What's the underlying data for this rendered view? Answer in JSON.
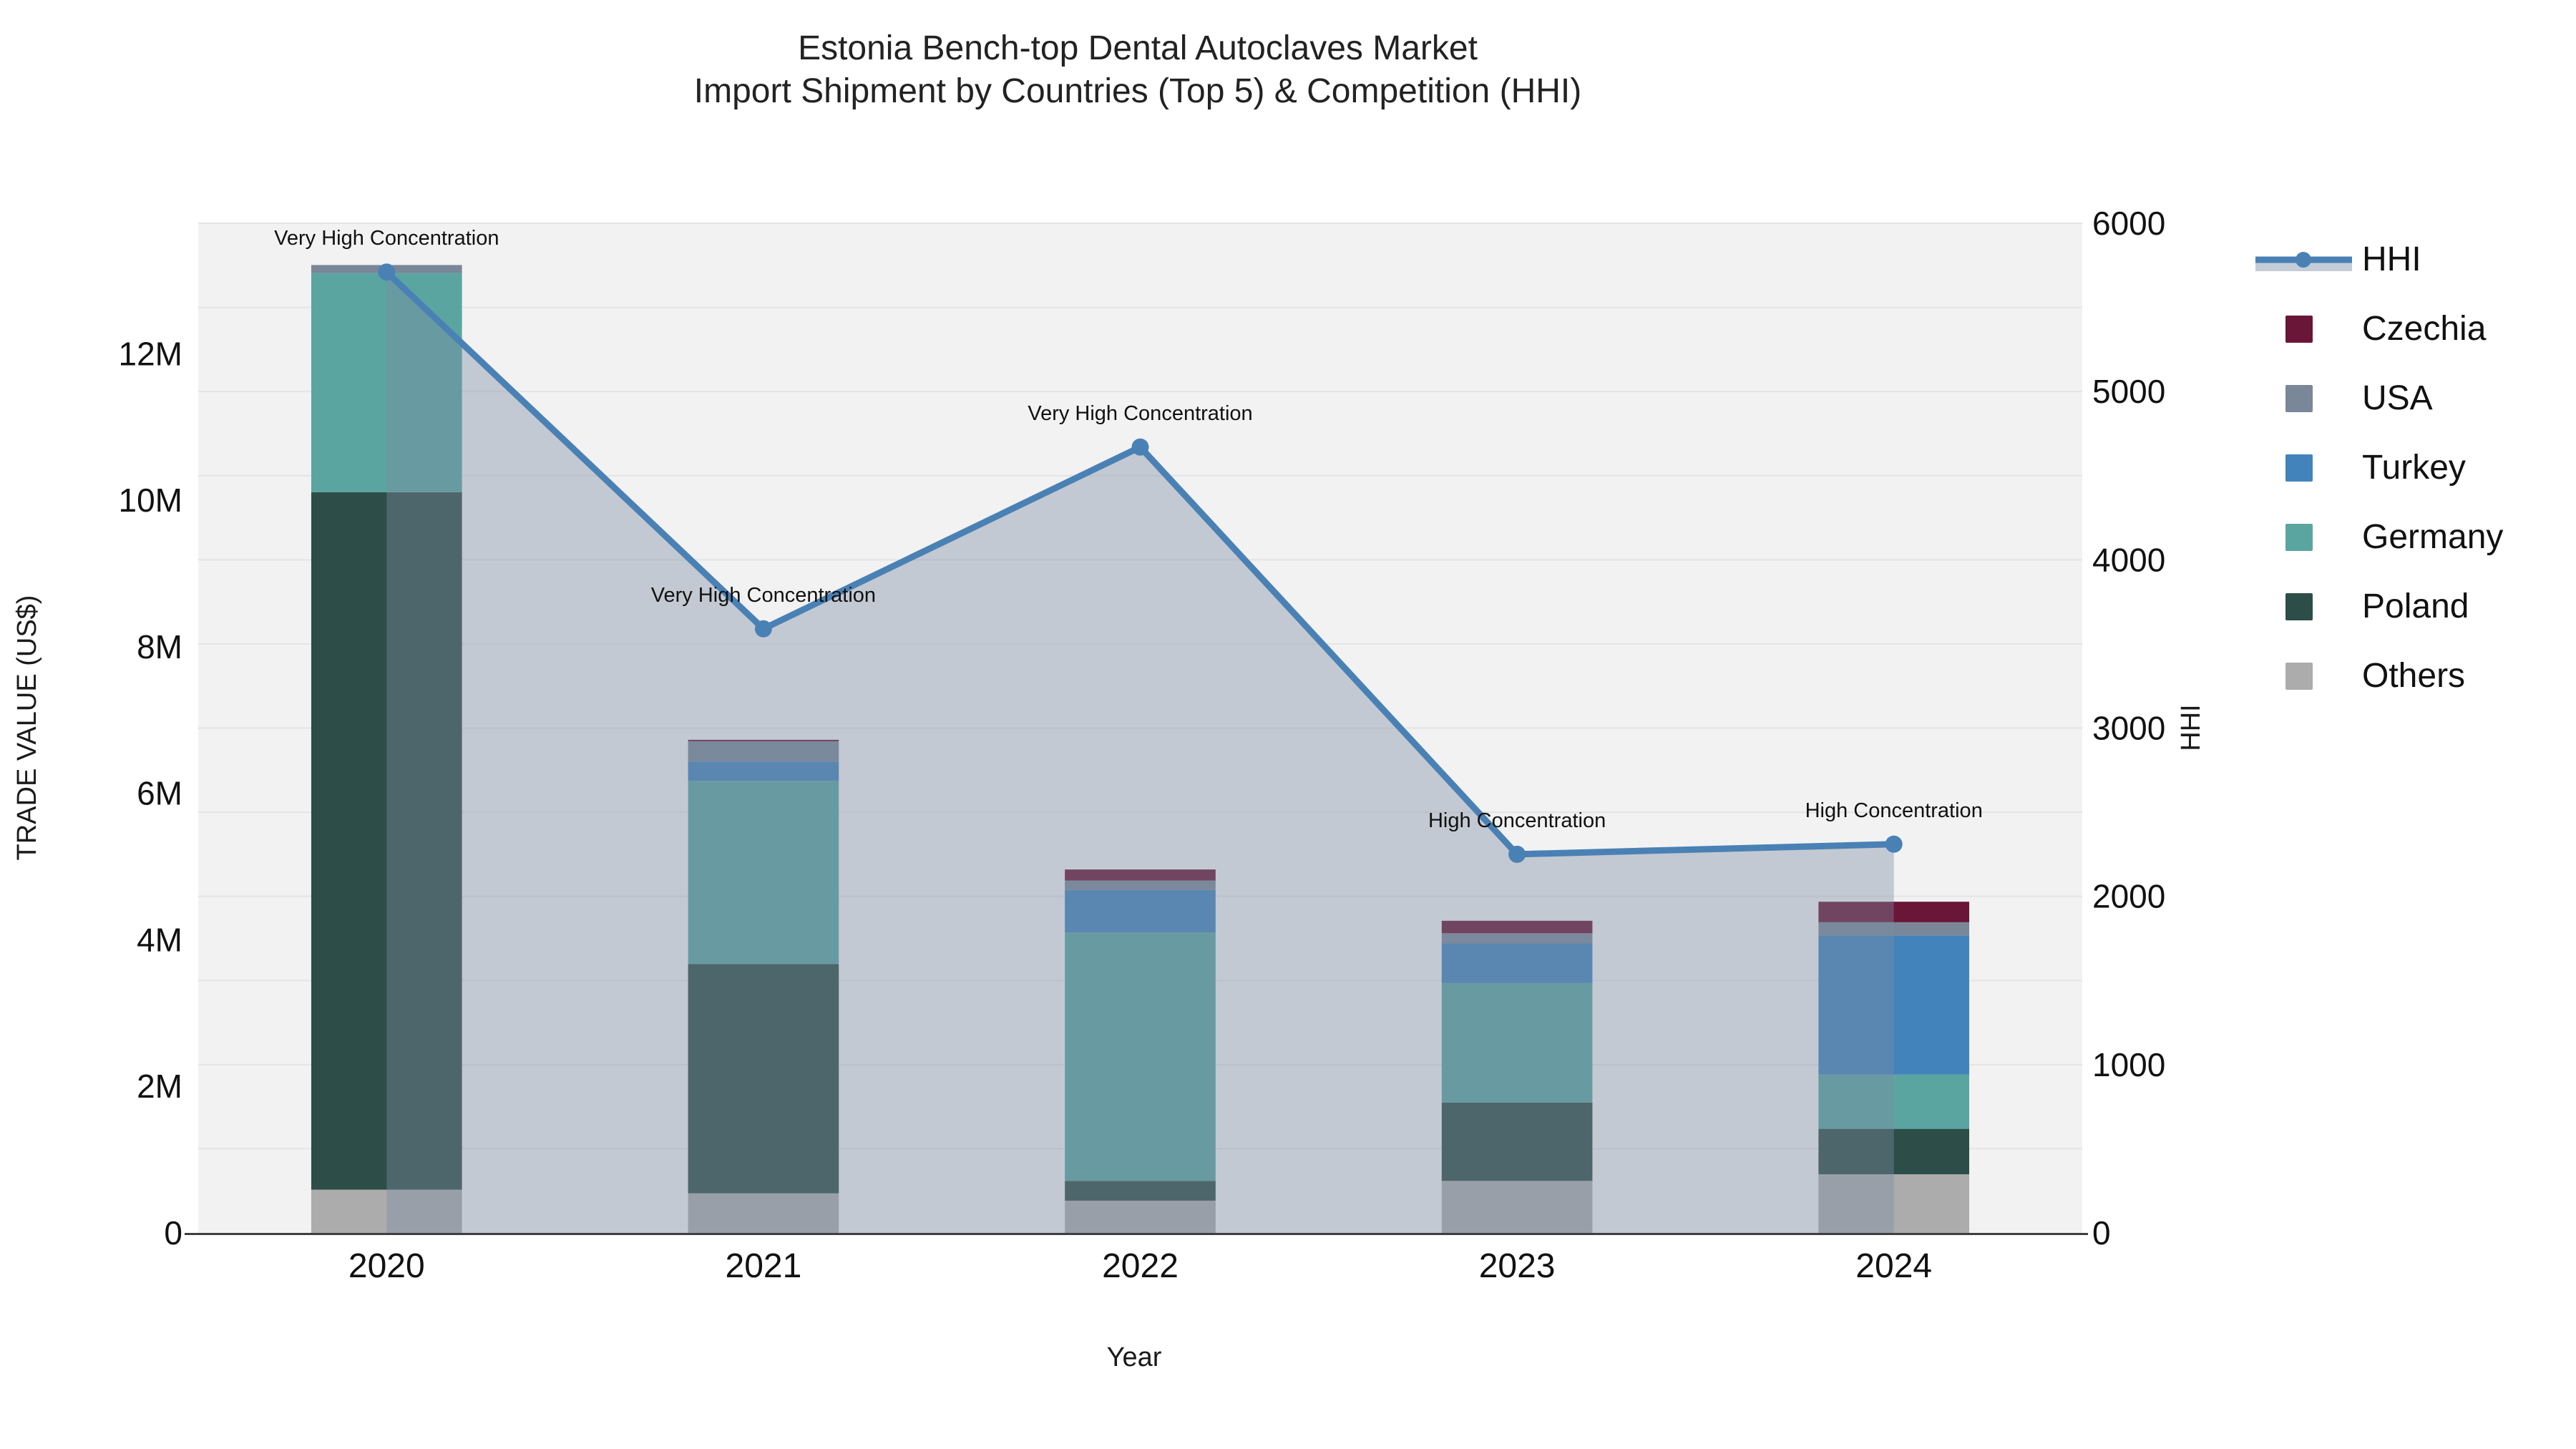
{
  "title": {
    "line1": "Estonia Bench-top Dental Autoclaves Market",
    "line2": "Import Shipment by Countries (Top 5) & Competition (HHI)"
  },
  "axes": {
    "left": {
      "title": "TRADE VALUE (US$)",
      "ticks": [
        {
          "label": "0",
          "value_musd": 0
        },
        {
          "label": "2M",
          "value_musd": 2
        },
        {
          "label": "4M",
          "value_musd": 4
        },
        {
          "label": "6M",
          "value_musd": 6
        },
        {
          "label": "8M",
          "value_musd": 8
        },
        {
          "label": "10M",
          "value_musd": 10
        },
        {
          "label": "12M",
          "value_musd": 12
        }
      ]
    },
    "right": {
      "title": "HHI",
      "ticks": [
        0,
        1000,
        2000,
        3000,
        4000,
        5000,
        6000
      ]
    },
    "x": {
      "title": "Year"
    }
  },
  "legend": {
    "items": [
      {
        "label": "HHI",
        "type": "line",
        "color": "#4A81B5"
      },
      {
        "label": "Czechia",
        "type": "swatch",
        "color": "#6A1638"
      },
      {
        "label": "USA",
        "type": "swatch",
        "color": "#7A8798"
      },
      {
        "label": "Turkey",
        "type": "swatch",
        "color": "#4383BC"
      },
      {
        "label": "Germany",
        "type": "swatch",
        "color": "#5BA5A1"
      },
      {
        "label": "Poland",
        "type": "swatch",
        "color": "#2D4D48"
      },
      {
        "label": "Others",
        "type": "swatch",
        "color": "#ACACAC"
      }
    ]
  },
  "colors": {
    "plot_bg": "#f2f2f2",
    "gridline": "#e4e4e4",
    "axis_line": "#3f3f3f",
    "hhi_line": "#4A81B5",
    "hhi_fill": "rgba(126,140,163,0.40)",
    "hhi_legend_fill": "#c3ccd7",
    "annotation_text": "#111111"
  },
  "chart_data": {
    "type": "bar+line",
    "title": "Estonia Bench-top Dental Autoclaves Market — Import Shipment by Countries (Top 5) & Competition (HHI)",
    "xlabel": "Year",
    "ylabel": "TRADE VALUE (US$)",
    "y2label": "HHI",
    "ylim_usd": [
      0,
      13780000
    ],
    "y2lim": [
      0,
      6000
    ],
    "grid": "horizontal, every 500 HHI",
    "legend_position": "right",
    "bar_mode": "stacked",
    "categories": [
      "2020",
      "2021",
      "2022",
      "2023",
      "2024"
    ],
    "series": [
      {
        "name": "Others",
        "color": "#ACACAC",
        "values_musd": [
          0.59,
          0.54,
          0.44,
          0.71,
          0.8
        ]
      },
      {
        "name": "Poland",
        "color": "#2D4D48",
        "values_musd": [
          9.52,
          3.13,
          0.27,
          1.07,
          0.62
        ]
      },
      {
        "name": "Germany",
        "color": "#5BA5A1",
        "values_musd": [
          2.99,
          2.5,
          3.39,
          1.63,
          0.74
        ]
      },
      {
        "name": "Turkey",
        "color": "#4383BC",
        "values_musd": [
          0.0,
          0.26,
          0.58,
          0.54,
          1.9
        ]
      },
      {
        "name": "USA",
        "color": "#7A8798",
        "values_musd": [
          0.11,
          0.28,
          0.13,
          0.14,
          0.18
        ]
      },
      {
        "name": "Czechia",
        "color": "#6A1638",
        "values_musd": [
          0.0,
          0.02,
          0.15,
          0.17,
          0.28
        ]
      }
    ],
    "totals_musd": [
      13.21,
      6.73,
      4.96,
      4.26,
      4.52
    ],
    "hhi": {
      "name": "HHI",
      "values": [
        5710,
        3590,
        4670,
        2250,
        2310
      ]
    },
    "annotations": [
      {
        "category": "2020",
        "text": "Very High Concentration"
      },
      {
        "category": "2021",
        "text": "Very High Concentration"
      },
      {
        "category": "2022",
        "text": "Very High Concentration"
      },
      {
        "category": "2023",
        "text": "High Concentration"
      },
      {
        "category": "2024",
        "text": "High Concentration"
      }
    ]
  }
}
